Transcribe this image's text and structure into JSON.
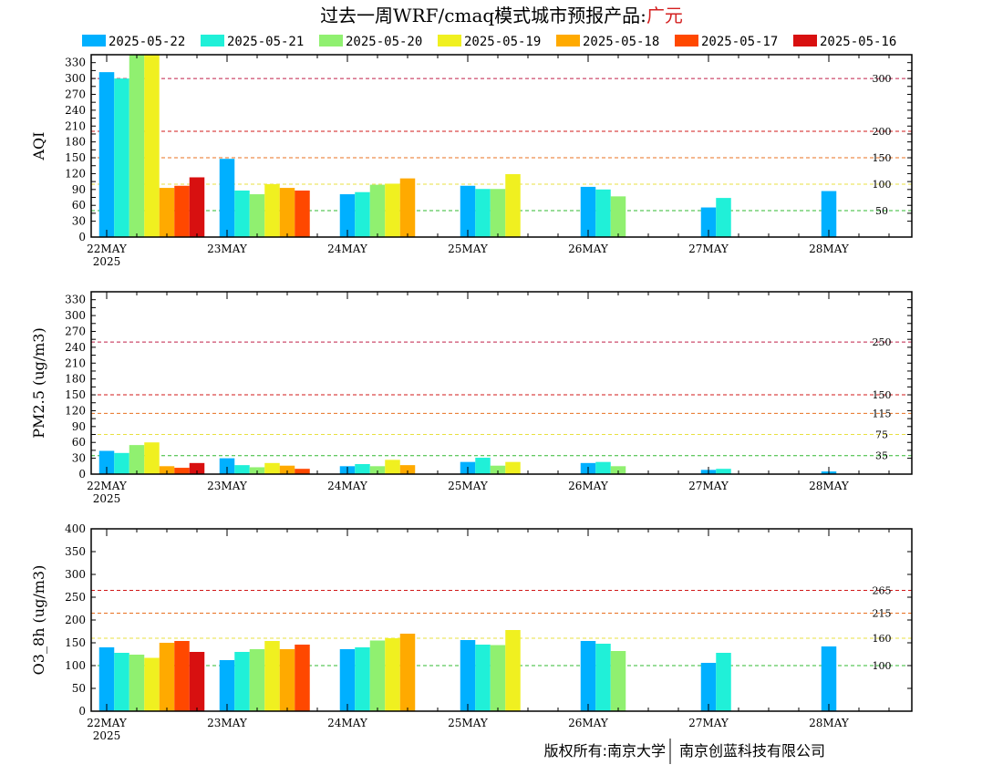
{
  "title": {
    "prefix": "过去一周WRF/cmaq模式城市预报产品:",
    "city": "广元"
  },
  "footer": {
    "left": "版权所有:南京大学",
    "right": "南京创蓝科技有限公司"
  },
  "legend": {
    "entries": [
      "2025-05-22",
      "2025-05-21",
      "2025-05-20",
      "2025-05-19",
      "2025-05-18",
      "2025-05-17",
      "2025-05-16"
    ],
    "colors": [
      "#00b0ff",
      "#20f0d8",
      "#90f070",
      "#f0f020",
      "#ffaa00",
      "#ff4800",
      "#d81010"
    ],
    "placement": "top"
  },
  "chart_data": [
    {
      "type": "bar",
      "ylabel": "AQI",
      "categories": [
        "22MAY",
        "23MAY",
        "24MAY",
        "25MAY",
        "26MAY",
        "27MAY",
        "28MAY"
      ],
      "year_label": "2025",
      "ylim": [
        0,
        345
      ],
      "yticks": [
        0,
        30,
        45,
        60,
        75,
        90,
        105,
        120,
        135,
        150,
        165,
        180,
        195,
        210,
        225,
        240,
        255,
        270,
        285,
        300,
        315,
        330
      ],
      "ytick_labels": [
        "0",
        "30",
        "",
        "60",
        "",
        "90",
        "",
        "120",
        "",
        "150",
        "",
        "180",
        "",
        "210",
        "",
        "240",
        "",
        "270",
        "",
        "300",
        "",
        "330"
      ],
      "ref_lines": [
        {
          "value": 300,
          "label": "300",
          "color": "#c0204a"
        },
        {
          "value": 200,
          "label": "200",
          "color": "#d01818"
        },
        {
          "value": 150,
          "label": "150",
          "color": "#e87020"
        },
        {
          "value": 100,
          "label": "100",
          "color": "#e8e040"
        },
        {
          "value": 50,
          "label": "50",
          "color": "#30b830"
        }
      ],
      "series": [
        {
          "name": "2025-05-22",
          "values": [
            312,
            148,
            81,
            97,
            95,
            56,
            87
          ]
        },
        {
          "name": "2025-05-21",
          "values": [
            300,
            88,
            85,
            91,
            90,
            74,
            null
          ]
        },
        {
          "name": "2025-05-20",
          "values": [
            345,
            81,
            99,
            91,
            77,
            null,
            null
          ]
        },
        {
          "name": "2025-05-19",
          "values": [
            345,
            100,
            101,
            119,
            null,
            null,
            null
          ]
        },
        {
          "name": "2025-05-18",
          "values": [
            93,
            93,
            111,
            null,
            null,
            null,
            null
          ]
        },
        {
          "name": "2025-05-17",
          "values": [
            97,
            88,
            null,
            null,
            null,
            null,
            null
          ]
        },
        {
          "name": "2025-05-16",
          "values": [
            113,
            null,
            null,
            null,
            null,
            null,
            null
          ]
        }
      ]
    },
    {
      "type": "bar",
      "ylabel": "PM2.5 (ug/m3)",
      "categories": [
        "22MAY",
        "23MAY",
        "24MAY",
        "25MAY",
        "26MAY",
        "27MAY",
        "28MAY"
      ],
      "year_label": "2025",
      "ylim": [
        0,
        345
      ],
      "yticks": [
        0,
        30,
        45,
        60,
        75,
        90,
        105,
        120,
        135,
        150,
        165,
        180,
        195,
        210,
        225,
        240,
        255,
        270,
        285,
        300,
        315,
        330
      ],
      "ytick_labels": [
        "0",
        "30",
        "",
        "60",
        "",
        "90",
        "",
        "120",
        "",
        "150",
        "",
        "180",
        "",
        "210",
        "",
        "240",
        "",
        "270",
        "",
        "300",
        "",
        "330"
      ],
      "ref_lines": [
        {
          "value": 250,
          "label": "250",
          "color": "#c0204a"
        },
        {
          "value": 150,
          "label": "150",
          "color": "#d01818"
        },
        {
          "value": 115,
          "label": "115",
          "color": "#e87020"
        },
        {
          "value": 75,
          "label": "75",
          "color": "#e8e040"
        },
        {
          "value": 35,
          "label": "35",
          "color": "#30b830"
        }
      ],
      "series": [
        {
          "name": "2025-05-22",
          "values": [
            44,
            30,
            15,
            23,
            21,
            8,
            5
          ]
        },
        {
          "name": "2025-05-21",
          "values": [
            40,
            17,
            19,
            31,
            23,
            10,
            null
          ]
        },
        {
          "name": "2025-05-20",
          "values": [
            55,
            13,
            15,
            16,
            15,
            null,
            null
          ]
        },
        {
          "name": "2025-05-19",
          "values": [
            60,
            21,
            27,
            23,
            null,
            null,
            null
          ]
        },
        {
          "name": "2025-05-18",
          "values": [
            15,
            16,
            17,
            null,
            null,
            null,
            null
          ]
        },
        {
          "name": "2025-05-17",
          "values": [
            12,
            10,
            null,
            null,
            null,
            null,
            null
          ]
        },
        {
          "name": "2025-05-16",
          "values": [
            21,
            null,
            null,
            null,
            null,
            null,
            null
          ]
        }
      ]
    },
    {
      "type": "bar",
      "ylabel": "O3_8h (ug/m3)",
      "categories": [
        "22MAY",
        "23MAY",
        "24MAY",
        "25MAY",
        "26MAY",
        "27MAY",
        "28MAY"
      ],
      "year_label": "2025",
      "ylim": [
        0,
        400
      ],
      "yticks": [
        0,
        50,
        100,
        150,
        200,
        250,
        300,
        350,
        400
      ],
      "ytick_labels": [
        "0",
        "50",
        "100",
        "150",
        "200",
        "250",
        "300",
        "350",
        "400"
      ],
      "ref_lines": [
        {
          "value": 265,
          "label": "265",
          "color": "#d01818"
        },
        {
          "value": 215,
          "label": "215",
          "color": "#e87020"
        },
        {
          "value": 160,
          "label": "160",
          "color": "#e8e040"
        },
        {
          "value": 100,
          "label": "100",
          "color": "#30b830"
        }
      ],
      "series": [
        {
          "name": "2025-05-22",
          "values": [
            140,
            112,
            136,
            156,
            154,
            106,
            142
          ]
        },
        {
          "name": "2025-05-21",
          "values": [
            128,
            130,
            140,
            146,
            148,
            128,
            null
          ]
        },
        {
          "name": "2025-05-20",
          "values": [
            124,
            136,
            155,
            145,
            132,
            null,
            null
          ]
        },
        {
          "name": "2025-05-19",
          "values": [
            117,
            154,
            160,
            178,
            null,
            null,
            null
          ]
        },
        {
          "name": "2025-05-18",
          "values": [
            150,
            136,
            170,
            null,
            null,
            null,
            null
          ]
        },
        {
          "name": "2025-05-17",
          "values": [
            154,
            146,
            null,
            null,
            null,
            null,
            null
          ]
        },
        {
          "name": "2025-05-16",
          "values": [
            130,
            null,
            null,
            null,
            null,
            null,
            null
          ]
        }
      ]
    }
  ]
}
